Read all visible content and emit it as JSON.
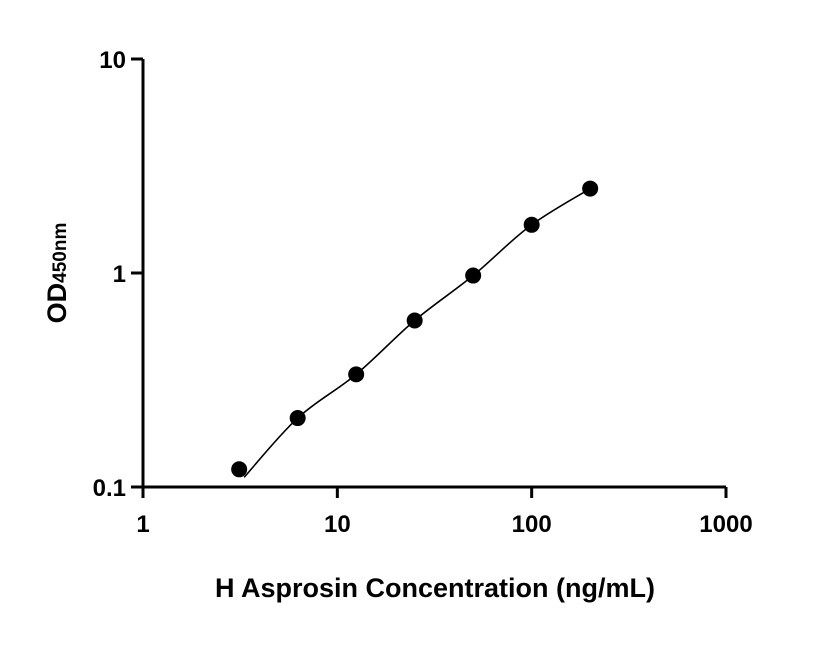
{
  "chart_data": {
    "type": "scatter",
    "title": "",
    "xlabel": "H Asprosin Concentration (ng/mL)",
    "ylabel_main": "OD",
    "ylabel_sub": "450nm",
    "x_scale": "log",
    "y_scale": "log",
    "xlim": [
      1,
      1000
    ],
    "ylim": [
      0.1,
      10
    ],
    "x_ticks": [
      "1",
      "10",
      "100",
      "1000"
    ],
    "y_ticks": [
      "0.1",
      "1",
      "10"
    ],
    "grid": false,
    "fit_curve": true,
    "point_color": "#000000",
    "x": [
      3.125,
      6.25,
      12.5,
      25,
      50,
      100,
      200
    ],
    "y": [
      0.121,
      0.21,
      0.336,
      0.6,
      0.973,
      1.68,
      2.48
    ]
  }
}
